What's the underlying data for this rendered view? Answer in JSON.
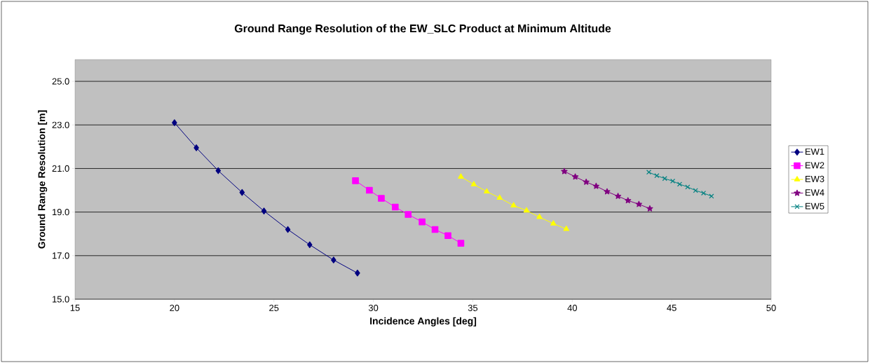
{
  "chart_data": {
    "type": "line",
    "title": "Ground Range Resolution of the EW_SLC Product at Minimum Altitude",
    "xlabel": "Incidence Angles [deg]",
    "ylabel": "Ground Range Resolution [m]",
    "xlim": [
      15,
      50
    ],
    "xticks": [
      15,
      20,
      25,
      30,
      35,
      40,
      45,
      50
    ],
    "ylim": [
      15,
      26
    ],
    "yticks": [
      {
        "value": 15,
        "label": "15.0"
      },
      {
        "value": 17,
        "label": "17.0"
      },
      {
        "value": 19,
        "label": "19.0"
      },
      {
        "value": 21,
        "label": "21.0"
      },
      {
        "value": 23,
        "label": "23.0"
      },
      {
        "value": 25,
        "label": "25.0"
      }
    ],
    "grid": "y",
    "legend": "right",
    "line_style": "solid",
    "series": [
      {
        "name": "EW1",
        "color": "#000080",
        "marker": "diamond",
        "x": [
          20.0,
          21.1,
          22.2,
          23.4,
          24.5,
          25.7,
          26.8,
          28.0,
          29.2
        ],
        "values": [
          23.1,
          21.95,
          20.9,
          19.9,
          19.05,
          18.2,
          17.5,
          16.8,
          16.2
        ]
      },
      {
        "name": "EW2",
        "color": "#ff00ff",
        "marker": "square",
        "x": [
          29.1,
          29.8,
          30.4,
          31.1,
          31.75,
          32.45,
          33.1,
          33.75,
          34.4
        ],
        "values": [
          20.44,
          20.0,
          19.63,
          19.23,
          18.89,
          18.55,
          18.2,
          17.92,
          17.57
        ]
      },
      {
        "name": "EW3",
        "color": "#ffff00",
        "marker": "triangle",
        "x": [
          34.4,
          35.05,
          35.7,
          36.35,
          37.05,
          37.7,
          38.35,
          39.05,
          39.7
        ],
        "values": [
          20.62,
          20.27,
          19.94,
          19.65,
          19.3,
          19.07,
          18.77,
          18.47,
          18.22
        ]
      },
      {
        "name": "EW4",
        "color": "#800080",
        "marker": "star",
        "x": [
          39.6,
          40.15,
          40.7,
          41.2,
          41.75,
          42.3,
          42.8,
          43.35,
          43.9
        ],
        "values": [
          20.87,
          20.62,
          20.38,
          20.19,
          19.94,
          19.73,
          19.53,
          19.36,
          19.16
        ]
      },
      {
        "name": "EW5",
        "color": "#008080",
        "marker": "cross",
        "x": [
          43.85,
          44.25,
          44.65,
          45.05,
          45.4,
          45.8,
          46.2,
          46.6,
          47.0
        ],
        "values": [
          20.83,
          20.67,
          20.54,
          20.42,
          20.28,
          20.15,
          19.99,
          19.87,
          19.73
        ]
      }
    ]
  }
}
